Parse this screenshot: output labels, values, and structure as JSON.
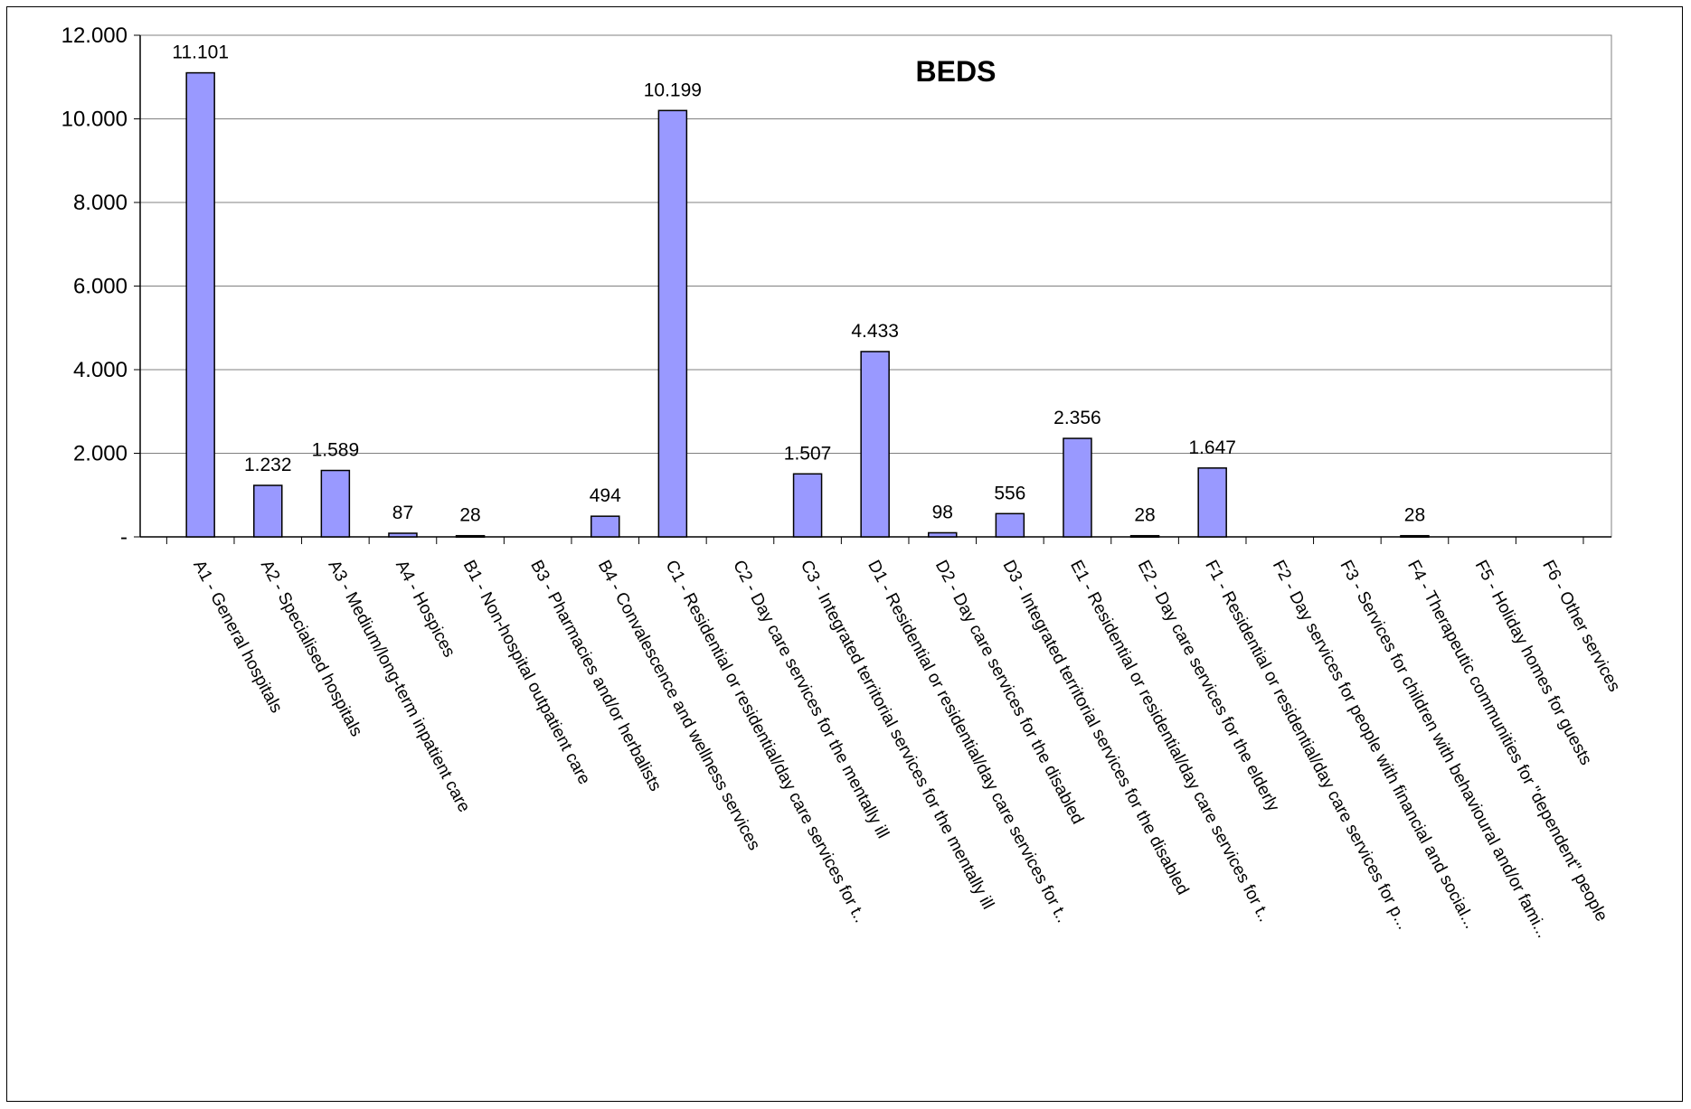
{
  "chart_data": {
    "type": "bar",
    "title": "BEDS",
    "ylim": [
      0,
      12000
    ],
    "yticks": [
      {
        "value": 0,
        "label": "-"
      },
      {
        "value": 2000,
        "label": "2.000"
      },
      {
        "value": 4000,
        "label": "4.000"
      },
      {
        "value": 6000,
        "label": "6.000"
      },
      {
        "value": 8000,
        "label": "8.000"
      },
      {
        "value": 10000,
        "label": "10.000"
      },
      {
        "value": 12000,
        "label": "12.000"
      }
    ],
    "grid": true,
    "bar_color": "#9999ff",
    "categories": [
      "A1 - General hospitals",
      "A2 - Specialised hospitals",
      "A3 - Medium/long-term inpatient care",
      "A4 - Hospices",
      "B1 - Non-hospital outpatient care",
      "B3 - Pharmacies and/or herbalists",
      "B4 - Convalescence and wellness services",
      "C1 - Residential or residential/day care services for t..",
      "C2 - Day care services for the mentally ill",
      "C3 - Integrated territorial services for the mentally ill",
      "D1 - Residential or residential/day care services for t..",
      "D2 - Day care services for the disabled",
      "D3 - Integrated territorial services for the disabled",
      "E1 - Residential or residential/day care services for t..",
      "E2 - Day care services for the elderly",
      "F1 - Residential or residential/day care services for p...",
      "F2 - Day services for people with financial and social...",
      "F3 - Services for children with behavioural and/or fami...",
      "F4 - Therapeutic communities for \"dependent\" people",
      "F5 - Holiday homes for guests",
      "F6 - Other services"
    ],
    "values": [
      11101,
      1232,
      1589,
      87,
      28,
      0,
      494,
      10199,
      0,
      1507,
      4433,
      98,
      556,
      2356,
      28,
      1647,
      0,
      0,
      28,
      0,
      0
    ],
    "data_labels": [
      "11.101",
      "1.232",
      "1.589",
      "87",
      "28",
      "",
      "494",
      "10.199",
      "",
      "1.507",
      "4.433",
      "98",
      "556",
      "2.356",
      "28",
      "1.647",
      "",
      "",
      "28",
      "",
      ""
    ]
  }
}
